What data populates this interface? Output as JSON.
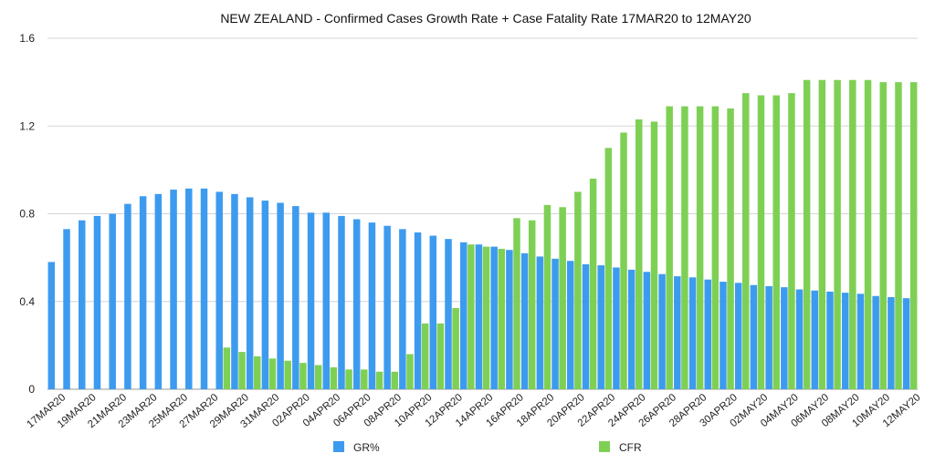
{
  "chart_data": {
    "type": "bar",
    "title": "NEW ZEALAND - Confirmed Cases Growth Rate + Case Fatality Rate 17MAR20 to 12MAY20",
    "xlabel": "",
    "ylabel": "",
    "ylim": [
      0,
      1.6
    ],
    "yticks": [
      "0",
      "0.4",
      "0.8",
      "1.2",
      "1.6"
    ],
    "grid": true,
    "legend_position": "bottom",
    "categories": [
      "17MAR20",
      "18MAR20",
      "19MAR20",
      "20MAR20",
      "21MAR20",
      "22MAR20",
      "23MAR20",
      "24MAR20",
      "25MAR20",
      "26MAR20",
      "27MAR20",
      "28MAR20",
      "29MAR20",
      "30MAR20",
      "31MAR20",
      "01APR20",
      "02APR20",
      "03APR20",
      "04APR20",
      "05APR20",
      "06APR20",
      "07APR20",
      "08APR20",
      "09APR20",
      "10APR20",
      "11APR20",
      "12APR20",
      "13APR20",
      "14APR20",
      "15APR20",
      "16APR20",
      "17APR20",
      "18APR20",
      "19APR20",
      "20APR20",
      "21APR20",
      "22APR20",
      "23APR20",
      "24APR20",
      "25APR20",
      "26APR20",
      "27APR20",
      "28APR20",
      "29APR20",
      "30APR20",
      "01MAY20",
      "02MAY20",
      "03MAY20",
      "04MAY20",
      "05MAY20",
      "06MAY20",
      "07MAY20",
      "08MAY20",
      "09MAY20",
      "10MAY20",
      "11MAY20",
      "12MAY20"
    ],
    "tick_labels": [
      "17MAR20",
      "19MAR20",
      "21MAR20",
      "23MAR20",
      "25MAR20",
      "27MAR20",
      "29MAR20",
      "31MAR20",
      "02APR20",
      "04APR20",
      "06APR20",
      "08APR20",
      "10APR20",
      "12APR20",
      "14APR20",
      "16APR20",
      "18APR20",
      "20APR20",
      "22APR20",
      "24APR20",
      "26APR20",
      "28APR20",
      "30APR20",
      "02MAY20",
      "04MAY20",
      "06MAY20",
      "08MAY20",
      "10MAY20",
      "12MAY20"
    ],
    "series": [
      {
        "name": "GR%",
        "color": "#3d9bef",
        "values": [
          0.58,
          0.73,
          0.77,
          0.79,
          0.8,
          0.845,
          0.88,
          0.89,
          0.91,
          0.915,
          0.915,
          0.9,
          0.89,
          0.875,
          0.86,
          0.85,
          0.835,
          0.805,
          0.805,
          0.79,
          0.775,
          0.76,
          0.745,
          0.73,
          0.715,
          0.7,
          0.685,
          0.67,
          0.66,
          0.65,
          0.635,
          0.62,
          0.605,
          0.595,
          0.585,
          0.57,
          0.565,
          0.555,
          0.545,
          0.535,
          0.525,
          0.515,
          0.51,
          0.5,
          0.49,
          0.485,
          0.475,
          0.47,
          0.465,
          0.455,
          0.45,
          0.445,
          0.44,
          0.435,
          0.425,
          0.42,
          0.415
        ]
      },
      {
        "name": "CFR",
        "color": "#7ed055",
        "values": [
          0,
          0,
          0,
          0,
          0,
          0,
          0,
          0,
          0,
          0,
          0,
          0.19,
          0.17,
          0.15,
          0.14,
          0.13,
          0.12,
          0.11,
          0.1,
          0.09,
          0.09,
          0.08,
          0.08,
          0.16,
          0.3,
          0.3,
          0.37,
          0.66,
          0.65,
          0.64,
          0.78,
          0.77,
          0.84,
          0.83,
          0.9,
          0.96,
          1.1,
          1.17,
          1.23,
          1.22,
          1.29,
          1.29,
          1.29,
          1.29,
          1.28,
          1.35,
          1.34,
          1.34,
          1.35,
          1.41,
          1.41,
          1.41,
          1.41,
          1.41,
          1.4,
          1.4,
          1.4
        ]
      }
    ]
  }
}
